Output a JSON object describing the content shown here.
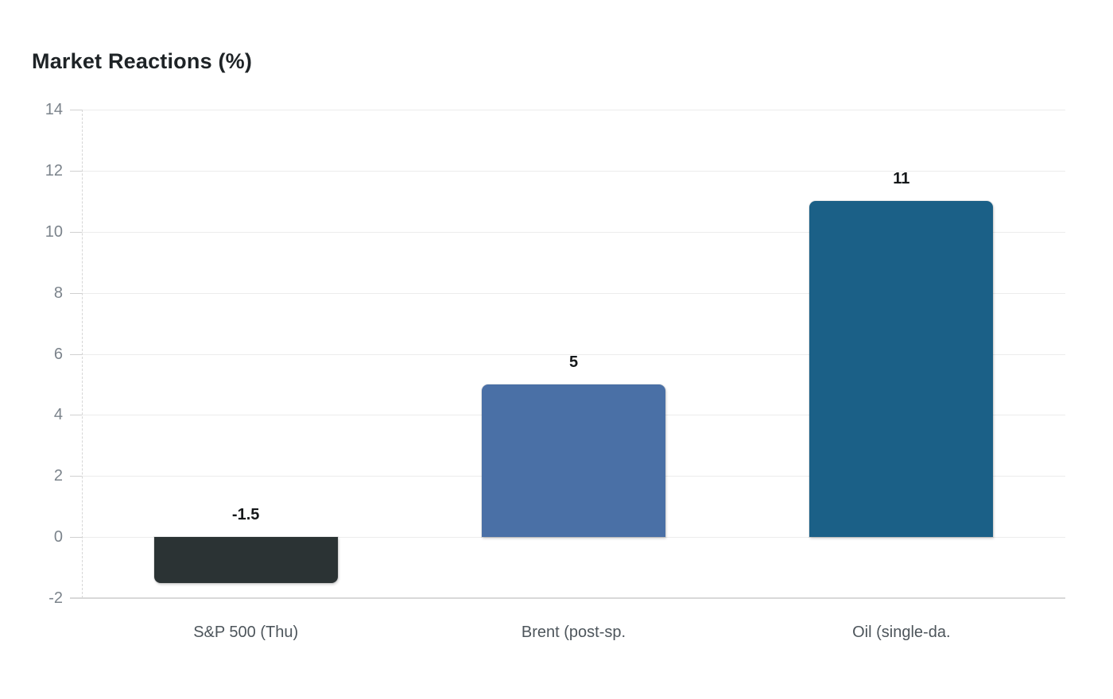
{
  "page": {
    "background": "#ffffff"
  },
  "chart_data": {
    "type": "bar",
    "title": "Market Reactions (%)",
    "categories": [
      "S&P 500 (Thu)",
      "Brent (post-sp.",
      "Oil (single-da."
    ],
    "values": [
      -1.5,
      5,
      11
    ],
    "value_labels": [
      "-1.5",
      "5",
      "11"
    ],
    "xlabel": "",
    "ylabel": "",
    "ylim": [
      -2,
      14
    ],
    "yticks": [
      -2,
      0,
      2,
      4,
      6,
      8,
      10,
      12,
      14
    ],
    "grid": true,
    "legend": "none",
    "colors": {
      "bars": [
        "#2b3334",
        "#4a70a6",
        "#1b6087"
      ],
      "title": "#1e2326",
      "value_label": "#15181a",
      "tick_label": "#7b838b",
      "category_label": "#4d555b",
      "gridline": "#ececec",
      "axis_line": "#d8d8d8",
      "tick_mark": "#d0d0d0",
      "background": "#ffffff"
    }
  }
}
